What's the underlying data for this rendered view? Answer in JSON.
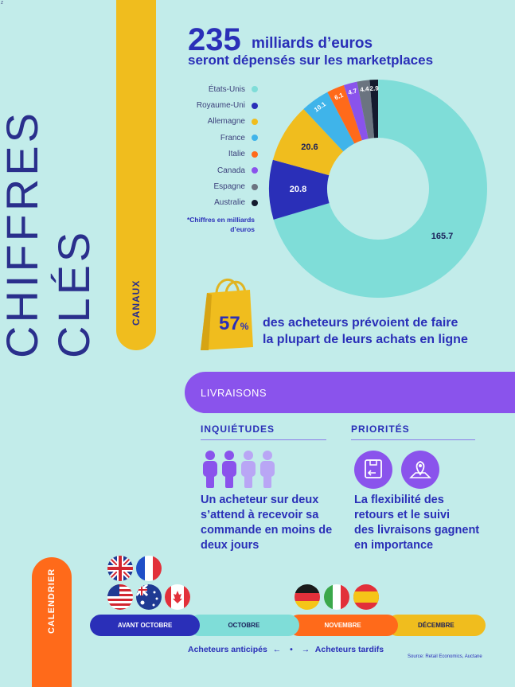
{
  "corner_mark": "Z",
  "title": "CHIFFRES CLÉS",
  "sections": {
    "canaux": "CANAUX",
    "livraisons": "LIVRAISONS",
    "calendrier": "CALENDRIER"
  },
  "headline": {
    "number": "235",
    "unit": "milliards d’euros",
    "subtitle": "seront dépensés sur les marketplaces"
  },
  "chart_note": "*Chiffres en milliards d’euros",
  "chart_data": {
    "type": "pie",
    "categories": [
      "États-Unis",
      "Royaume-Uni",
      "Allemagne",
      "France",
      "Italie",
      "Canada",
      "Espagne",
      "Australie"
    ],
    "values": [
      165.7,
      20.8,
      20.6,
      10.1,
      6.1,
      4.7,
      4.4,
      2.9
    ],
    "labels": [
      "165.7",
      "20.8",
      "20.6",
      "10.1",
      "6.1",
      "4.7",
      "4.4",
      "2.9"
    ],
    "colors": [
      "#7fddd8",
      "#2a2fb8",
      "#f0bd1e",
      "#3fb4ea",
      "#ff6a1a",
      "#8a53ec",
      "#6b7480",
      "#141a2e"
    ],
    "label_colors": [
      "#1a1f5a",
      "#ffffff",
      "#1a1f5a",
      "#ffffff",
      "#ffffff",
      "#ffffff",
      "#ffffff",
      "#ffffff"
    ],
    "legend_position": "left"
  },
  "bag_stat": {
    "percent": "57",
    "percent_sign": "%",
    "line1": "des acheteurs prévoient de faire",
    "line2": "la plupart de leurs achats en ligne"
  },
  "inquietudes": {
    "title": "INQUIÉTUDES",
    "people_icon": "person-icon",
    "highlighted_people": 2,
    "total_people": 4,
    "line1": "Un acheteur sur deux",
    "line2": "s’attend à recevoir sa",
    "line3": "commande en moins de",
    "line4": "deux jours"
  },
  "priorites": {
    "title": "PRIORITÉS",
    "icons": [
      "return-box-icon",
      "map-pin-icon"
    ],
    "line1": "La flexibilité des",
    "line2": "retours et le suivi",
    "line3": "des livraisons gagnent",
    "line4": "en importance"
  },
  "calendar": {
    "segments": [
      {
        "label": "AVANT OCTOBRE",
        "color": "#2a2fb8",
        "text_color": "#ffffff"
      },
      {
        "label": "OCTOBRE",
        "color": "#7fddd8",
        "text_color": "#1a1f5a"
      },
      {
        "label": "NOVEMBRE",
        "color": "#ff6a1a",
        "text_color": "#ffffff"
      },
      {
        "label": "DÉCEMBRE",
        "color": "#f0bd1e",
        "text_color": "#1a1f5a"
      }
    ],
    "flags_early": [
      "uk-flag-icon",
      "france-flag-icon",
      "usa-flag-icon",
      "australia-flag-icon",
      "canada-flag-icon"
    ],
    "flags_late": [
      "germany-flag-icon",
      "italy-flag-icon",
      "spain-flag-icon"
    ],
    "buyers_early": "Acheteurs anticipés",
    "buyers_late": "Acheteurs tardifs",
    "arrow_left": "←",
    "dot": "•",
    "arrow_right": "→"
  },
  "source": "Source: Retail Economics, Auctane"
}
